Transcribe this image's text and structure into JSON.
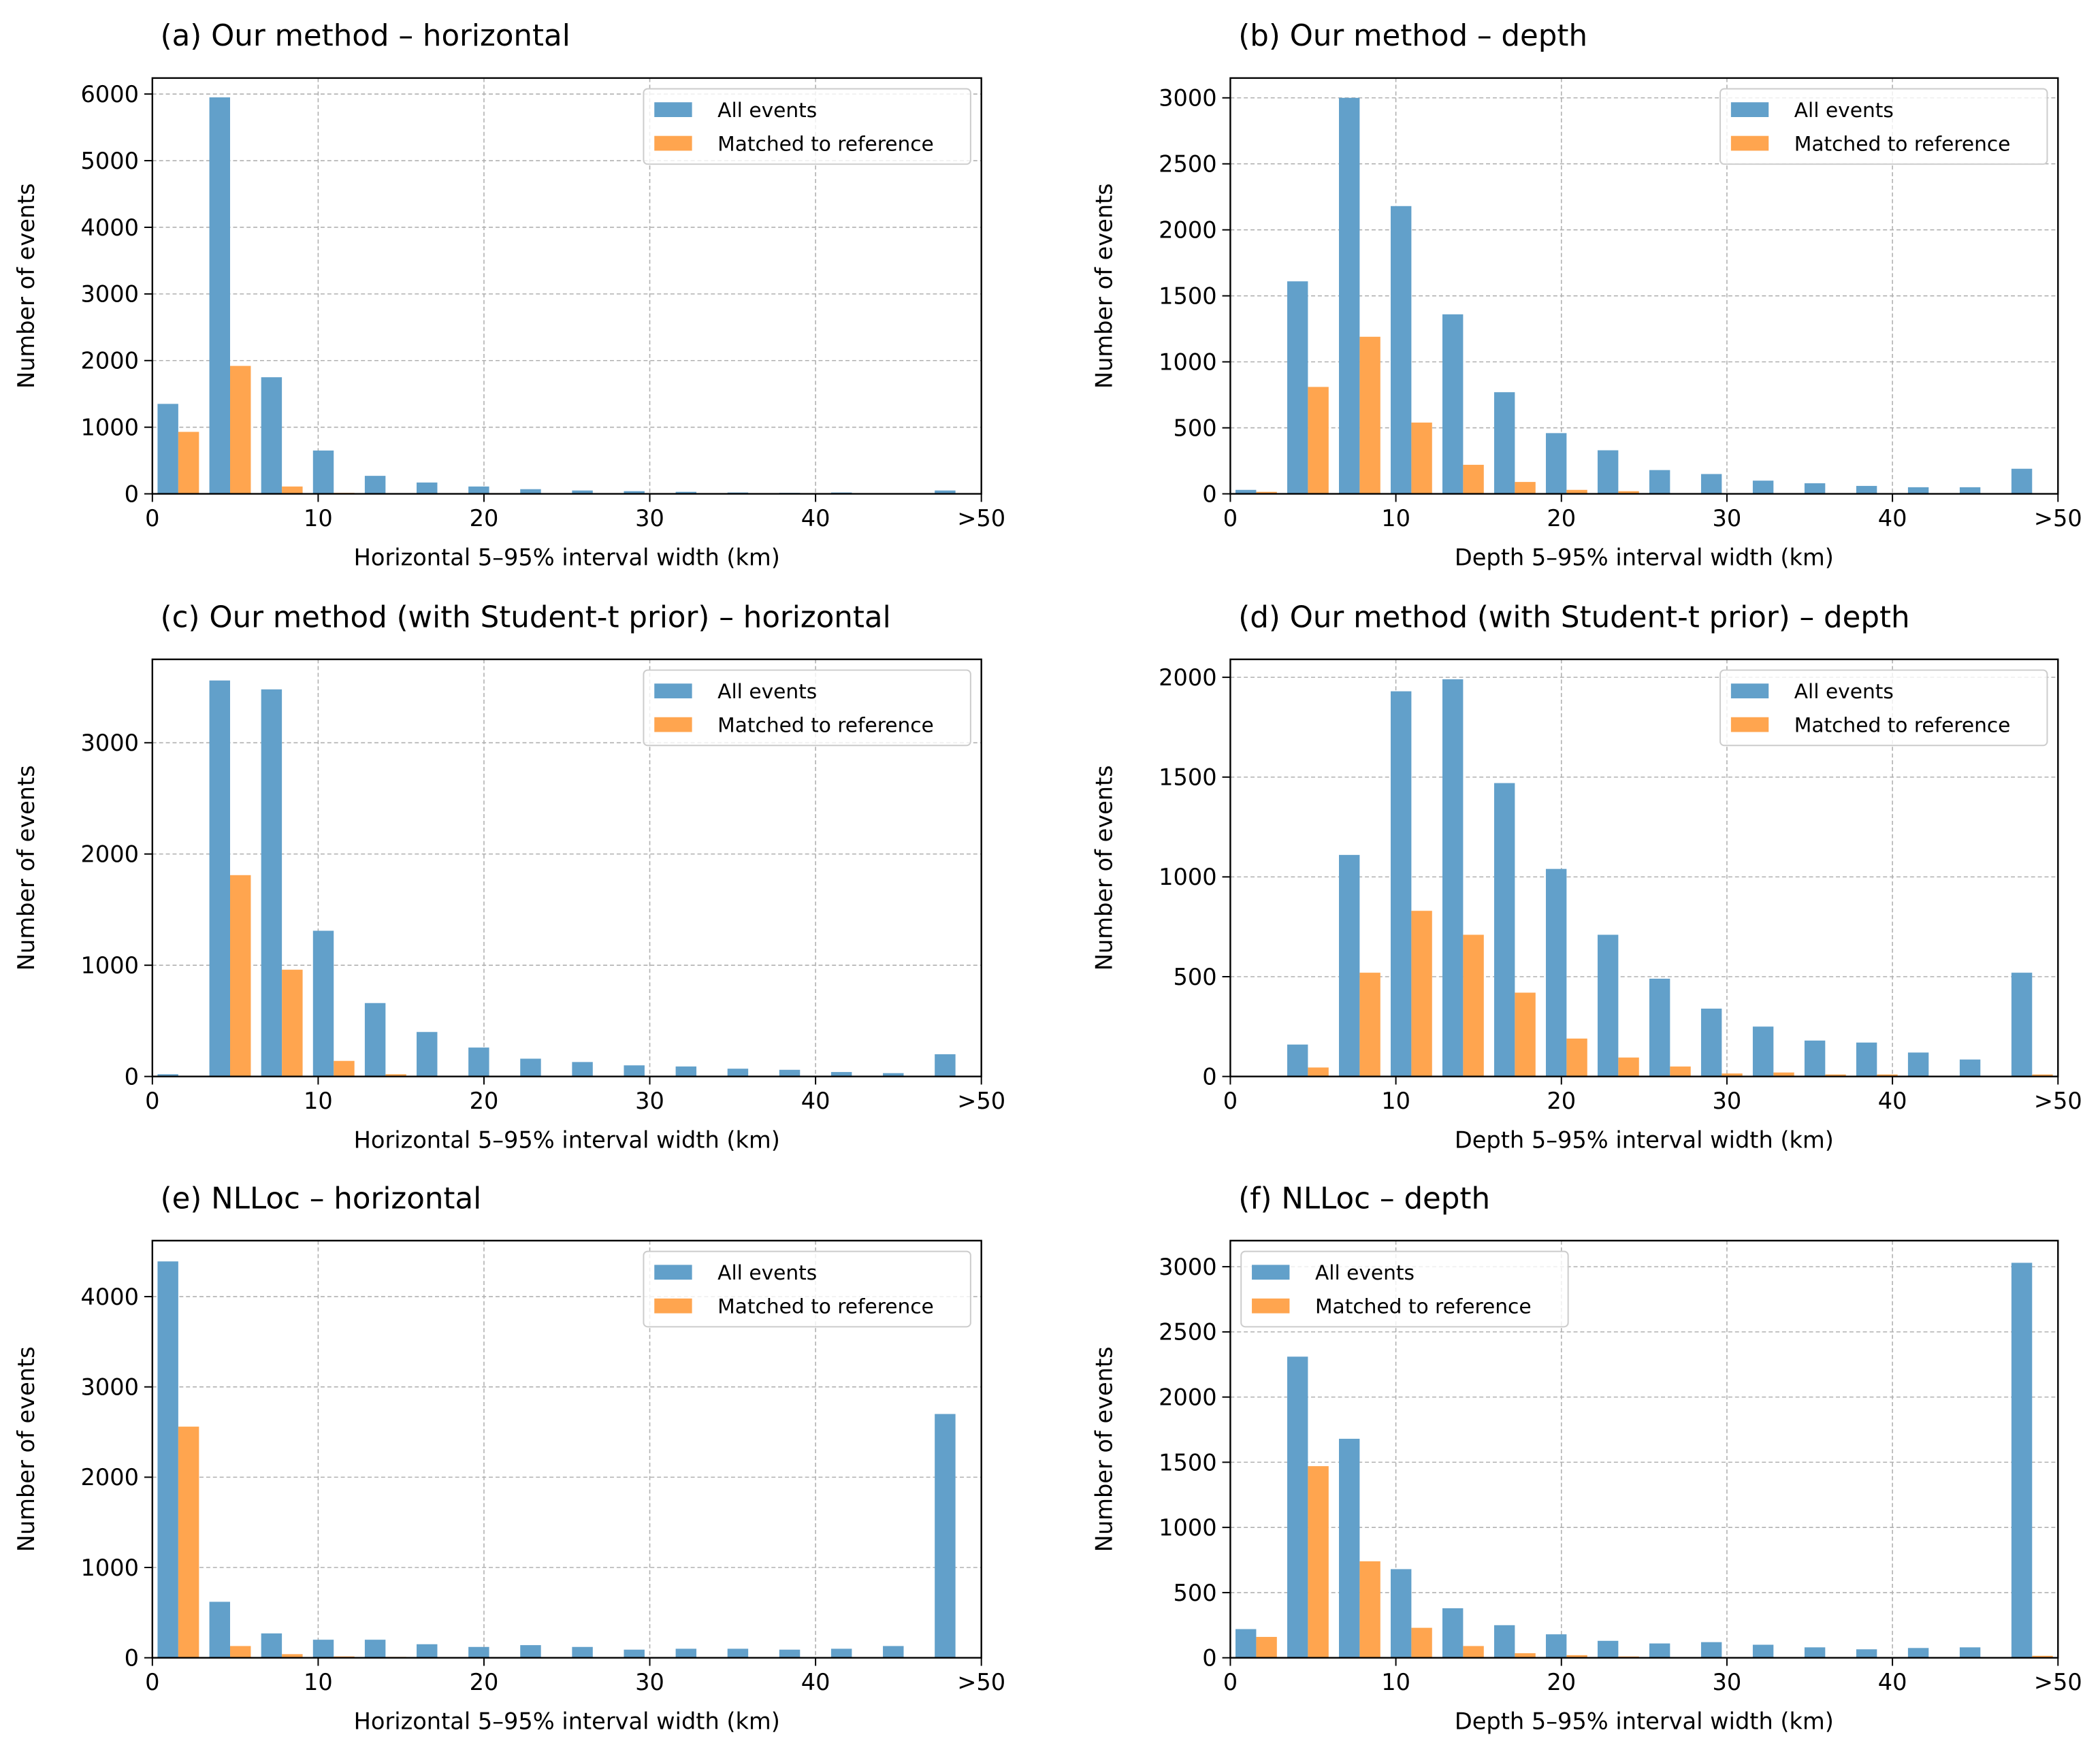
{
  "chart_data": [
    {
      "type": "histogram",
      "title": "(a) Our method – horizontal",
      "xlabel": "Horizontal 5–95% interval width (km)",
      "ylabel": "Number of events",
      "bins": [
        0,
        3.125,
        6.25,
        9.375,
        12.5,
        15.625,
        18.75,
        21.875,
        25,
        28.125,
        31.25,
        34.375,
        37.5,
        40.625,
        43.75,
        46.875,
        50
      ],
      "series": [
        {
          "name": "All events",
          "color": "#62a0ca",
          "values": [
            1350,
            5950,
            1750,
            650,
            270,
            170,
            110,
            70,
            50,
            40,
            30,
            20,
            15,
            20,
            10,
            50
          ]
        },
        {
          "name": "Matched to reference",
          "color": "#ffa54f",
          "values": [
            930,
            1920,
            110,
            15,
            5,
            3,
            2,
            2,
            1,
            1,
            1,
            1,
            0,
            0,
            0,
            1
          ]
        }
      ],
      "xlim": [
        0,
        50
      ],
      "ylim": [
        0,
        6240
      ],
      "xticks": [
        0,
        10,
        20,
        30,
        40,
        {
          "value": 50,
          "label": ">50"
        }
      ],
      "yticks": [
        0,
        1000,
        2000,
        3000,
        4000,
        5000,
        6000
      ],
      "grid": true,
      "legend": "upper right"
    },
    {
      "type": "histogram",
      "title": "(b) Our method – depth",
      "xlabel": "Depth 5–95% interval width (km)",
      "ylabel": "Number of events",
      "bins": [
        0,
        3.125,
        6.25,
        9.375,
        12.5,
        15.625,
        18.75,
        21.875,
        25,
        28.125,
        31.25,
        34.375,
        37.5,
        40.625,
        43.75,
        46.875,
        50
      ],
      "series": [
        {
          "name": "All events",
          "color": "#62a0ca",
          "values": [
            30,
            1610,
            3000,
            2180,
            1360,
            770,
            460,
            330,
            180,
            150,
            100,
            80,
            60,
            50,
            50,
            190
          ]
        },
        {
          "name": "Matched to reference",
          "color": "#ffa54f",
          "values": [
            15,
            810,
            1190,
            540,
            220,
            90,
            30,
            20,
            5,
            5,
            2,
            2,
            1,
            1,
            1,
            2
          ]
        }
      ],
      "xlim": [
        0,
        50
      ],
      "ylim": [
        0,
        3150
      ],
      "xticks": [
        0,
        10,
        20,
        30,
        40,
        {
          "value": 50,
          "label": ">50"
        }
      ],
      "yticks": [
        0,
        500,
        1000,
        1500,
        2000,
        2500,
        3000
      ],
      "grid": true,
      "legend": "upper right"
    },
    {
      "type": "histogram",
      "title": "(c) Our method (with Student-t prior) – horizontal",
      "xlabel": "Horizontal 5–95% interval width (km)",
      "ylabel": "Number of events",
      "bins": [
        0,
        3.125,
        6.25,
        9.375,
        12.5,
        15.625,
        18.75,
        21.875,
        25,
        28.125,
        31.25,
        34.375,
        37.5,
        40.625,
        43.75,
        46.875,
        50
      ],
      "series": [
        {
          "name": "All events",
          "color": "#62a0ca",
          "values": [
            20,
            3560,
            3480,
            1310,
            660,
            400,
            260,
            160,
            130,
            100,
            90,
            70,
            60,
            40,
            30,
            200
          ]
        },
        {
          "name": "Matched to reference",
          "color": "#ffa54f",
          "values": [
            0,
            1810,
            960,
            140,
            20,
            5,
            3,
            2,
            1,
            1,
            1,
            1,
            0,
            0,
            0,
            2
          ]
        }
      ],
      "xlim": [
        0,
        50
      ],
      "ylim": [
        0,
        3750
      ],
      "xticks": [
        0,
        10,
        20,
        30,
        40,
        {
          "value": 50,
          "label": ">50"
        }
      ],
      "yticks": [
        0,
        1000,
        2000,
        3000
      ],
      "grid": true,
      "legend": "upper right"
    },
    {
      "type": "histogram",
      "title": "(d) Our method (with Student-t prior) – depth",
      "xlabel": "Depth 5–95% interval width (km)",
      "ylabel": "Number of events",
      "bins": [
        0,
        3.125,
        6.25,
        9.375,
        12.5,
        15.625,
        18.75,
        21.875,
        25,
        28.125,
        31.25,
        34.375,
        37.5,
        40.625,
        43.75,
        46.875,
        50
      ],
      "series": [
        {
          "name": "All events",
          "color": "#62a0ca",
          "values": [
            0,
            160,
            1110,
            1930,
            1990,
            1470,
            1040,
            710,
            490,
            340,
            250,
            180,
            170,
            120,
            85,
            520
          ]
        },
        {
          "name": "Matched to reference",
          "color": "#ffa54f",
          "values": [
            0,
            45,
            520,
            830,
            710,
            420,
            190,
            95,
            50,
            15,
            20,
            10,
            10,
            2,
            2,
            10
          ]
        }
      ],
      "xlim": [
        0,
        50
      ],
      "ylim": [
        0,
        2090
      ],
      "xticks": [
        0,
        10,
        20,
        30,
        40,
        {
          "value": 50,
          "label": ">50"
        }
      ],
      "yticks": [
        0,
        500,
        1000,
        1500,
        2000
      ],
      "grid": true,
      "legend": "upper right"
    },
    {
      "type": "histogram",
      "title": "(e) NLLoc – horizontal",
      "xlabel": "Horizontal 5–95% interval width (km)",
      "ylabel": "Number of events",
      "bins": [
        0,
        3.125,
        6.25,
        9.375,
        12.5,
        15.625,
        18.75,
        21.875,
        25,
        28.125,
        31.25,
        34.375,
        37.5,
        40.625,
        43.75,
        46.875,
        50
      ],
      "series": [
        {
          "name": "All events",
          "color": "#62a0ca",
          "values": [
            4390,
            620,
            270,
            200,
            200,
            150,
            120,
            140,
            120,
            90,
            100,
            100,
            90,
            100,
            130,
            2700
          ]
        },
        {
          "name": "Matched to reference",
          "color": "#ffa54f",
          "values": [
            2560,
            130,
            40,
            15,
            10,
            5,
            5,
            5,
            3,
            2,
            2,
            2,
            2,
            2,
            2,
            5
          ]
        }
      ],
      "xlim": [
        0,
        50
      ],
      "ylim": [
        0,
        4620
      ],
      "xticks": [
        0,
        10,
        20,
        30,
        40,
        {
          "value": 50,
          "label": ">50"
        }
      ],
      "yticks": [
        0,
        1000,
        2000,
        3000,
        4000
      ],
      "grid": true,
      "legend": "upper right"
    },
    {
      "type": "histogram",
      "title": "(f) NLLoc – depth",
      "xlabel": "Depth 5–95% interval width (km)",
      "ylabel": "Number of events",
      "bins": [
        0,
        3.125,
        6.25,
        9.375,
        12.5,
        15.625,
        18.75,
        21.875,
        25,
        28.125,
        31.25,
        34.375,
        37.5,
        40.625,
        43.75,
        46.875,
        50
      ],
      "series": [
        {
          "name": "All events",
          "color": "#62a0ca",
          "values": [
            220,
            2310,
            1680,
            680,
            380,
            250,
            180,
            130,
            110,
            120,
            100,
            80,
            65,
            75,
            80,
            3030
          ]
        },
        {
          "name": "Matched to reference",
          "color": "#ffa54f",
          "values": [
            160,
            1470,
            740,
            230,
            90,
            35,
            20,
            10,
            5,
            5,
            2,
            2,
            2,
            2,
            2,
            15
          ]
        }
      ],
      "xlim": [
        0,
        50
      ],
      "ylim": [
        0,
        3200
      ],
      "xticks": [
        0,
        10,
        20,
        30,
        40,
        {
          "value": 50,
          "label": ">50"
        }
      ],
      "yticks": [
        0,
        500,
        1000,
        1500,
        2000,
        2500,
        3000
      ],
      "grid": true,
      "legend": "upper left"
    }
  ]
}
